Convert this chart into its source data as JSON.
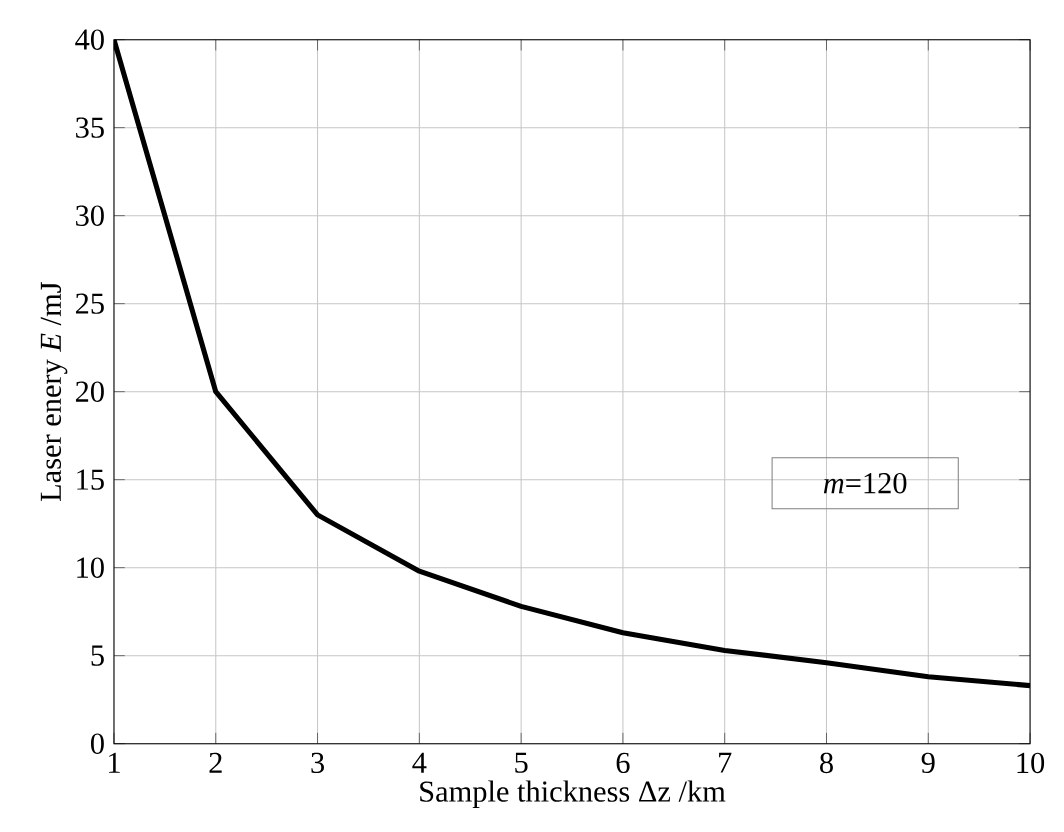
{
  "chart_data": {
    "type": "line",
    "xlabel": "Sample thickness Δz /km",
    "ylabel": "Laser enery *E* /mJ",
    "x": [
      1,
      2,
      3,
      4,
      5,
      6,
      7,
      8,
      9,
      10
    ],
    "series": [
      {
        "color": "#000000",
        "values": [
          40,
          20,
          13,
          9.8,
          7.8,
          6.3,
          5.3,
          4.6,
          3.8,
          3.3
        ]
      }
    ],
    "xlim": [
      1,
      10
    ],
    "xticks": [
      1,
      2,
      3,
      4,
      5,
      6,
      7,
      8,
      9,
      10
    ],
    "ylim": [
      0,
      40
    ],
    "yticks": [
      0,
      5,
      10,
      15,
      20,
      25,
      30,
      35,
      40
    ],
    "grid": true,
    "annotations": [
      "*m*=120"
    ]
  }
}
